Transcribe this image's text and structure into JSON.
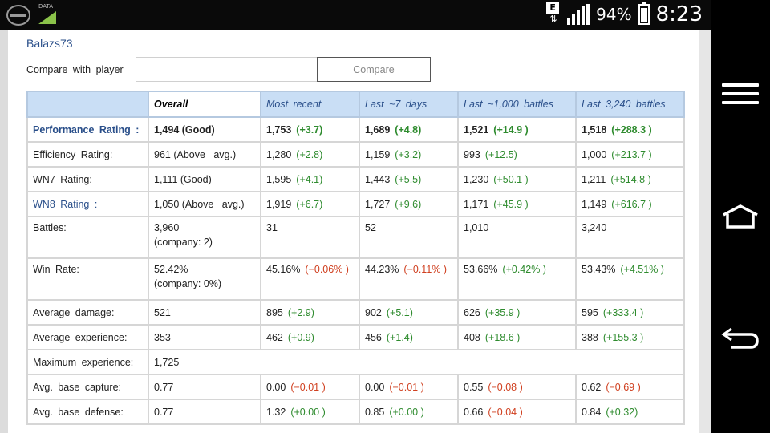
{
  "statusbar": {
    "data_label": "DATA",
    "network_badge": "E",
    "network_arrows": "⇅",
    "battery_percent": "94%",
    "time": "8:23",
    "icons": [
      "connection-icon",
      "data-icon",
      "network-type-icon",
      "signal-icon",
      "battery-icon"
    ]
  },
  "navbar": {
    "icons": [
      "menu-icon",
      "home-icon",
      "back-icon"
    ]
  },
  "player": {
    "name": "Balazs73"
  },
  "compare": {
    "label": "Compare with player",
    "input_value": "",
    "button_label": "Compare"
  },
  "table": {
    "headers": [
      "",
      "Overall",
      "Most recent",
      "Last ~7 days",
      "Last ~1,000 battles",
      "Last 3,240 battles"
    ],
    "rows": [
      {
        "label": "Performance Rating :",
        "overall": "1,494 (Good)",
        "overall2": "",
        "cells": [
          [
            "1,753",
            "(+3.7)",
            "pos"
          ],
          [
            "1,689",
            "(+4.8)",
            "pos"
          ],
          [
            "1,521",
            "(+14.9 )",
            "pos"
          ],
          [
            "1,518",
            "(+288.3 )",
            "pos"
          ]
        ]
      },
      {
        "label": "Efficiency Rating:",
        "overall": "961 (Above   avg.)",
        "overall2": "",
        "cells": [
          [
            "1,280",
            "(+2.8)",
            "pos"
          ],
          [
            "1,159",
            "(+3.2)",
            "pos"
          ],
          [
            "993",
            "(+12.5)",
            "pos"
          ],
          [
            "1,000",
            "(+213.7 )",
            "pos"
          ]
        ]
      },
      {
        "label": "WN7 Rating:",
        "overall": "1,111 (Good)",
        "overall2": "",
        "cells": [
          [
            "1,595",
            "(+4.1)",
            "pos"
          ],
          [
            "1,443",
            "(+5.5)",
            "pos"
          ],
          [
            "1,230",
            "(+50.1 )",
            "pos"
          ],
          [
            "1,211",
            "(+514.8 )",
            "pos"
          ]
        ]
      },
      {
        "label": "WN8 Rating :",
        "overall": "1,050 (Above   avg.)",
        "overall2": "",
        "cells": [
          [
            "1,919",
            "(+6.7)",
            "pos"
          ],
          [
            "1,727",
            "(+9.6)",
            "pos"
          ],
          [
            "1,171",
            "(+45.9 )",
            "pos"
          ],
          [
            "1,149",
            "(+616.7 )",
            "pos"
          ]
        ]
      },
      {
        "label": "Battles:",
        "overall": "3,960",
        "overall2": "(company: 2)",
        "cells": [
          [
            "31",
            "",
            ""
          ],
          [
            "52",
            "",
            ""
          ],
          [
            "1,010",
            "",
            ""
          ],
          [
            "3,240",
            "",
            ""
          ]
        ]
      },
      {
        "label": "Win Rate:",
        "overall": "52.42%",
        "overall2": "(company: 0%)",
        "cells": [
          [
            "45.16%",
            "(−0.06% )",
            "neg"
          ],
          [
            "44.23%",
            "(−0.11% )",
            "neg"
          ],
          [
            "53.66%",
            "(+0.42% )",
            "pos"
          ],
          [
            "53.43%",
            "(+4.51% )",
            "pos"
          ]
        ]
      },
      {
        "label": "Average damage:",
        "overall": "521",
        "overall2": "",
        "cells": [
          [
            "895",
            "(+2.9)",
            "pos"
          ],
          [
            "902",
            "(+5.1)",
            "pos"
          ],
          [
            "626",
            "(+35.9 )",
            "pos"
          ],
          [
            "595",
            "(+333.4 )",
            "pos"
          ]
        ]
      },
      {
        "label": "Average experience:",
        "overall": "353",
        "overall2": "",
        "cells": [
          [
            "462",
            "(+0.9)",
            "pos"
          ],
          [
            "456",
            "(+1.4)",
            "pos"
          ],
          [
            "408",
            "(+18.6 )",
            "pos"
          ],
          [
            "388",
            "(+155.3 )",
            "pos"
          ]
        ]
      },
      {
        "label": "Maximum experience:",
        "overall": "1,725",
        "overall2": "",
        "cells": []
      },
      {
        "label": "Avg. base capture:",
        "overall": "0.77",
        "overall2": "",
        "cells": [
          [
            "0.00",
            "(−0.01 )",
            "neg"
          ],
          [
            "0.00",
            "(−0.01 )",
            "neg"
          ],
          [
            "0.55",
            "(−0.08 )",
            "neg"
          ],
          [
            "0.62",
            "(−0.69 )",
            "neg"
          ]
        ]
      },
      {
        "label": "Avg. base defense:",
        "overall": "0.77",
        "overall2": "",
        "cells": [
          [
            "1.32",
            "(+0.00 )",
            "pos"
          ],
          [
            "0.85",
            "(+0.00 )",
            "pos"
          ],
          [
            "0.66",
            "(−0.04 )",
            "neg"
          ],
          [
            "0.84",
            "(+0.32)",
            "pos"
          ]
        ]
      }
    ]
  },
  "colors": {
    "header_bg": "#c9def5",
    "link": "#2a4f8a",
    "positive": "#2e8b2e",
    "negative": "#d04020"
  }
}
